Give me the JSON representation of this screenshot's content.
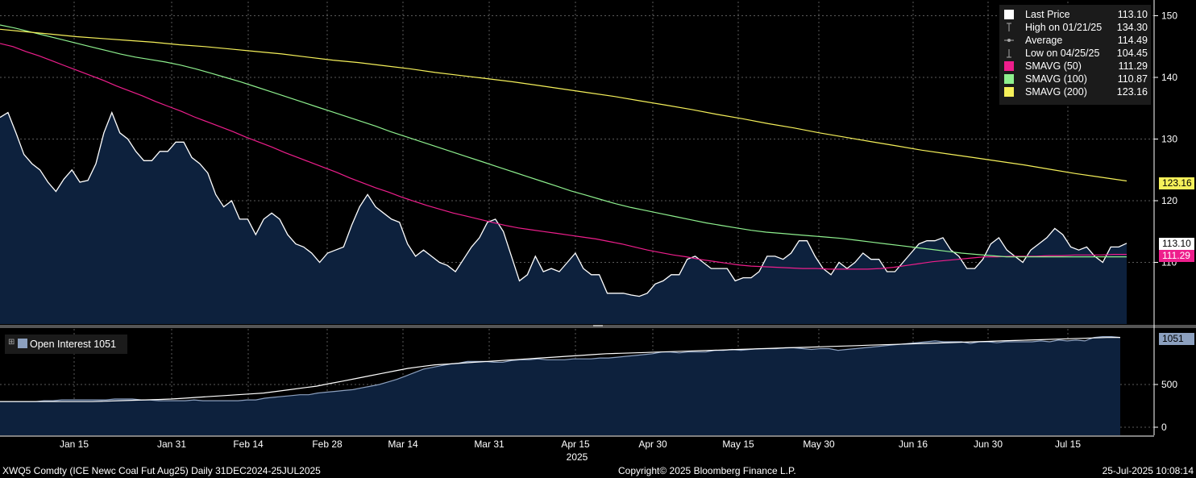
{
  "footer": {
    "left": "XWQ5 Comdty (ICE Newc Coal Fut Aug25)  Daily 31DEC2024-25JUL2025",
    "center": "Copyright© 2025 Bloomberg Finance L.P.",
    "right": "25-Jul-2025 10:08:14"
  },
  "legend": [
    {
      "label": "Last Price",
      "value": "113.10",
      "icon": "white-square",
      "color": "#ffffff"
    },
    {
      "label": "High on 01/21/25",
      "value": "134.30",
      "icon": "high-marker",
      "color": "#aaaaaa"
    },
    {
      "label": "Average",
      "value": "114.49",
      "icon": "average-marker",
      "color": "#aaaaaa"
    },
    {
      "label": "Low on 04/25/25",
      "value": "104.45",
      "icon": "low-marker",
      "color": "#aaaaaa"
    },
    {
      "label": "SMAVG (50)",
      "value": "111.29",
      "icon": "magenta-square",
      "color": "#ee1e8c"
    },
    {
      "label": "SMAVG (100)",
      "value": "110.87",
      "icon": "green-square",
      "color": "#8ef08e"
    },
    {
      "label": "SMAVG (200)",
      "value": "123.16",
      "icon": "yellow-square",
      "color": "#f5f05a"
    }
  ],
  "oi_legend": {
    "label": "Open Interest 1051",
    "color": "#8ca0bf"
  },
  "tags": {
    "sma200": {
      "text": "123.16",
      "bg": "#f5f05a",
      "fg": "#000000"
    },
    "last": {
      "text": "113.10",
      "bg": "#ffffff",
      "fg": "#000000"
    },
    "sma50": {
      "text": "111.29",
      "bg": "#ee1e8c",
      "fg": "#ffffff"
    },
    "oi": {
      "text": "1051",
      "bg": "#8ca0bf",
      "fg": "#000000"
    }
  },
  "chart_data": [
    {
      "type": "area",
      "xaxis": {
        "ticks": [
          "Jan 15",
          "Jan 31",
          "Feb 14",
          "Feb 28",
          "Mar 14",
          "Mar 31",
          "Apr 15",
          "Apr 30",
          "May 15",
          "May 30",
          "Jun 16",
          "Jun 30",
          "Jul 15"
        ],
        "year_label": "2025"
      },
      "yaxis": {
        "ticks": [
          110,
          120,
          130,
          140,
          150
        ],
        "range": [
          100,
          151
        ]
      },
      "grid": true,
      "legend_position": "top-right",
      "series": [
        {
          "name": "Last Price",
          "color": "#ffffff",
          "fill": "#0d213d",
          "values": [
            133.5,
            134.3,
            131,
            127.5,
            126,
            125,
            123,
            121.5,
            123.5,
            125,
            123,
            123.3,
            126,
            131,
            134.3,
            131,
            130,
            128,
            126.5,
            126.5,
            128,
            128,
            129.5,
            129.5,
            127,
            126,
            124.5,
            121,
            119,
            120,
            117,
            117,
            114.5,
            117,
            118,
            117,
            114.5,
            113,
            112.5,
            111.5,
            110,
            111.5,
            112,
            112.5,
            116,
            119,
            121,
            119,
            118,
            117,
            116.5,
            113,
            111,
            112,
            111,
            110,
            109.5,
            108.5,
            110.5,
            112.5,
            114,
            116.5,
            117,
            115,
            111,
            107,
            108,
            111,
            108.5,
            109,
            108.5,
            110,
            111.5,
            109,
            108,
            108,
            105,
            105,
            105,
            104.7,
            104.5,
            105,
            106.5,
            107,
            108,
            108,
            110.5,
            111,
            110,
            109,
            109,
            109,
            107,
            107.5,
            107.5,
            108.5,
            111,
            111,
            110.5,
            111.5,
            113.5,
            113.5,
            111,
            109,
            108,
            110,
            109,
            110,
            111.5,
            110.5,
            110.5,
            108.5,
            108.5,
            110,
            111.5,
            113,
            113.5,
            113.5,
            114,
            112,
            111,
            109,
            109,
            110.5,
            113,
            114,
            112,
            111,
            110,
            112,
            113,
            114,
            115.5,
            114.5,
            112.5,
            112,
            112.5,
            111,
            110,
            112.5,
            112.5,
            113.1
          ]
        },
        {
          "name": "SMAVG (50)",
          "color": "#ee1e8c",
          "values": [
            145.5,
            145,
            144.2,
            143.5,
            142.7,
            141.9,
            141.1,
            140.3,
            139.5,
            138.6,
            137.8,
            137,
            136.1,
            135.3,
            134.5,
            133.6,
            132.8,
            132,
            131.2,
            130.3,
            129.5,
            128.7,
            127.8,
            127,
            126.2,
            125.4,
            124.6,
            123.7,
            122.9,
            122.1,
            121.4,
            120.6,
            119.9,
            119.2,
            118.6,
            118,
            117.5,
            117,
            116.5,
            116,
            115.6,
            115.3,
            115,
            114.7,
            114.4,
            114.1,
            113.8,
            113.4,
            113,
            112.5,
            112,
            111.6,
            111.2,
            110.9,
            110.5,
            110.2,
            109.9,
            109.6,
            109.4,
            109.3,
            109.2,
            109.1,
            109,
            109,
            108.9,
            108.9,
            108.9,
            108.9,
            109,
            109.2,
            109.5,
            109.8,
            110.1,
            110.3,
            110.5,
            110.7,
            110.9,
            110.9,
            111,
            111,
            111,
            111.1,
            111.1,
            111.2,
            111.2,
            111.2,
            111.3,
            111.3
          ]
        },
        {
          "name": "SMAVG (100)",
          "color": "#8ef08e",
          "values": [
            148.5,
            148,
            147.4,
            146.8,
            146.2,
            145.6,
            145,
            144.4,
            143.8,
            143.3,
            142.9,
            142.5,
            142,
            141.4,
            140.7,
            140,
            139.3,
            138.5,
            137.7,
            136.9,
            136.1,
            135.3,
            134.5,
            133.7,
            132.9,
            132.1,
            131.2,
            130.4,
            129.6,
            128.8,
            128,
            127.2,
            126.4,
            125.6,
            124.8,
            124,
            123.2,
            122.4,
            121.6,
            120.9,
            120.2,
            119.5,
            118.9,
            118.4,
            117.9,
            117.4,
            116.9,
            116.4,
            116,
            115.6,
            115.2,
            114.9,
            114.7,
            114.5,
            114.3,
            114.1,
            113.9,
            113.6,
            113.3,
            113,
            112.7,
            112.4,
            112.1,
            111.8,
            111.5,
            111.3,
            111.1,
            110.9,
            110.9,
            110.9,
            110.9,
            110.9,
            110.9,
            110.9,
            110.9,
            110.9
          ]
        },
        {
          "name": "SMAVG (200)",
          "color": "#f5f05a",
          "values": [
            147.8,
            147.4,
            147,
            146.6,
            146.3,
            146,
            145.7,
            145.3,
            145,
            144.6,
            144.2,
            143.8,
            143.3,
            142.8,
            142.4,
            141.9,
            141.4,
            140.8,
            140.3,
            139.8,
            139.3,
            138.7,
            138.1,
            137.5,
            136.9,
            136.2,
            135.5,
            134.8,
            134,
            133.3,
            132.5,
            131.8,
            131,
            130.3,
            129.6,
            128.9,
            128.2,
            127.6,
            127,
            126.4,
            125.8,
            125.1,
            124.4,
            123.8,
            123.2
          ]
        }
      ]
    },
    {
      "type": "area",
      "yaxis": {
        "ticks": [
          0,
          500
        ],
        "range": [
          -50,
          1130
        ]
      },
      "grid": true,
      "series": [
        {
          "name": "Open Interest 1051",
          "color": "#8ca0bf",
          "fill": "#0d213d",
          "values": [
            300,
            300,
            300,
            300,
            300,
            310,
            310,
            320,
            320,
            320,
            320,
            320,
            320,
            330,
            330,
            330,
            320,
            320,
            310,
            310,
            310,
            310,
            320,
            310,
            310,
            310,
            310,
            310,
            320,
            320,
            340,
            350,
            360,
            370,
            380,
            380,
            400,
            410,
            420,
            430,
            440,
            460,
            480,
            500,
            530,
            560,
            600,
            640,
            680,
            700,
            720,
            740,
            750,
            770,
            770,
            770,
            760,
            760,
            780,
            790,
            790,
            800,
            790,
            790,
            790,
            800,
            800,
            800,
            810,
            810,
            820,
            830,
            840,
            850,
            860,
            880,
            880,
            870,
            880,
            880,
            880,
            900,
            900,
            910,
            900,
            910,
            920,
            920,
            920,
            930,
            930,
            920,
            910,
            920,
            920,
            900,
            910,
            920,
            930,
            940,
            950,
            960,
            970,
            980,
            990,
            1000,
            1010,
            1000,
            1000,
            1000,
            980,
            1000,
            1000,
            990,
            1000,
            1000,
            1000,
            1000,
            1010,
            1000,
            1020,
            1010,
            1020,
            1010,
            1050,
            1060,
            1060,
            1051
          ]
        },
        {
          "color": "#ffffff",
          "values": [
            300,
            300,
            300,
            300,
            300,
            300,
            300,
            300,
            305,
            310,
            315,
            320,
            325,
            330,
            340,
            350,
            360,
            370,
            380,
            390,
            400,
            420,
            440,
            460,
            480,
            510,
            540,
            570,
            600,
            630,
            660,
            690,
            710,
            730,
            740,
            750,
            760,
            770,
            780,
            790,
            800,
            810,
            820,
            830,
            840,
            850,
            860,
            865,
            870,
            875,
            880,
            885,
            890,
            895,
            900,
            905,
            910,
            915,
            920,
            925,
            930,
            935,
            940,
            945,
            950,
            955,
            960,
            965,
            970,
            975,
            980,
            985,
            990,
            995,
            1000,
            1005,
            1010,
            1015,
            1020,
            1025,
            1030,
            1035,
            1040,
            1045,
            1050,
            1051
          ]
        }
      ]
    }
  ]
}
